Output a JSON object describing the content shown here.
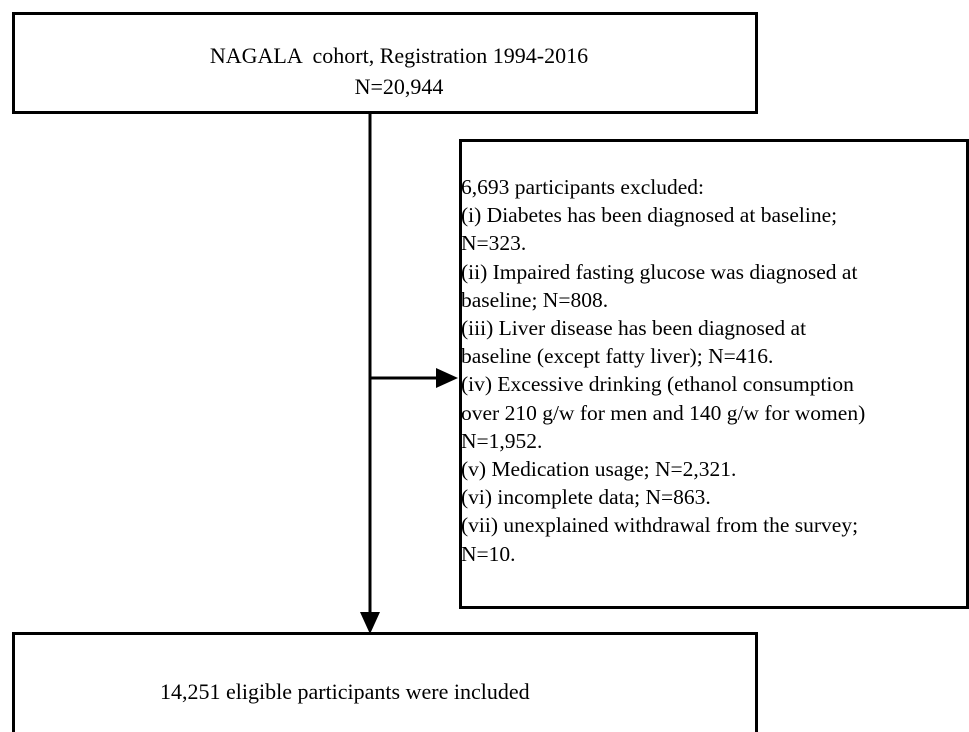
{
  "nodes": [
    {
      "lines": [
        "NAGALA  cohort, Registration 1994-2016",
        "N=20,944"
      ]
    },
    {
      "lines": [
        "6,693 participants excluded:",
        "(i) Diabetes has been diagnosed at baseline;",
        "N=323.",
        "(ii) Impaired fasting glucose was diagnosed at",
        "baseline; N=808.",
        "(iii) Liver disease has been diagnosed at",
        "baseline (except fatty liver); N=416.",
        "(iv) Excessive drinking (ethanol consumption",
        "over 210 g/w for men and 140 g/w for women)",
        "N=1,952.",
        "(v) Medication usage; N=2,321.",
        "(vi) incomplete data; N=863.",
        "(vii) unexplained withdrawal from the survey;",
        "N=10."
      ]
    },
    {
      "lines": [
        "14,251 eligible participants were included"
      ]
    }
  ]
}
